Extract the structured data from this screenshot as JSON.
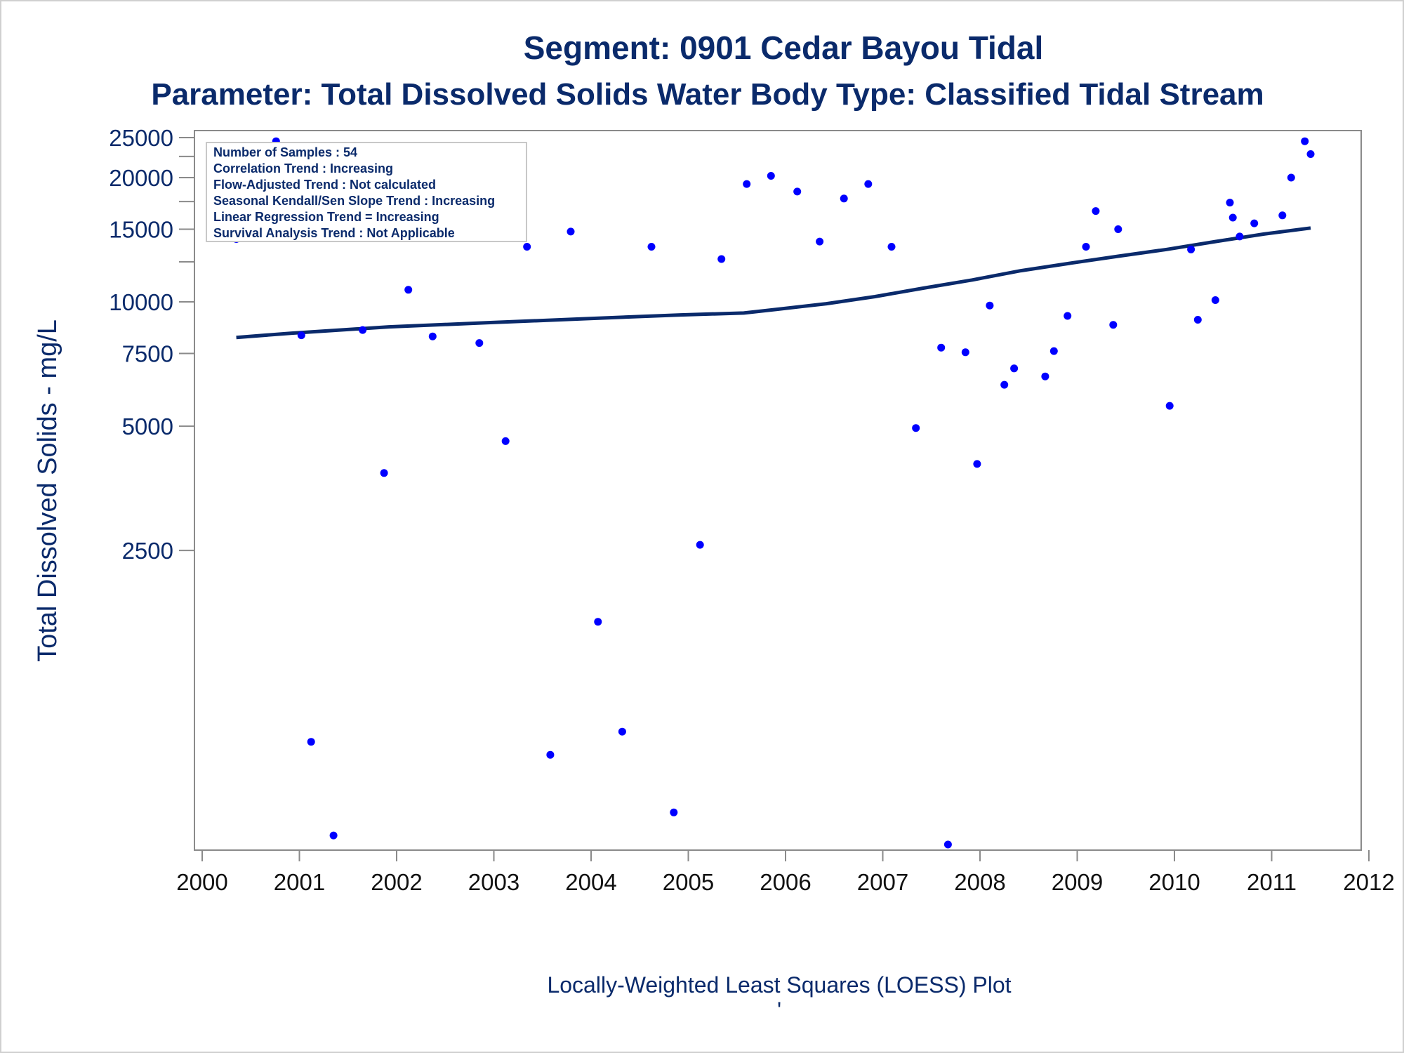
{
  "chart_data": {
    "type": "scatter",
    "title": "Segment: 0901  Cedar Bayou Tidal",
    "subtitle": "Parameter: Total Dissolved Solids   Water Body Type: Classified Tidal Stream",
    "xlabel": "Locally-Weighted Least Squares (LOESS) Plot",
    "footnote": "'",
    "ylabel": "Total Dissolved Solids - mg/L",
    "y_scale": "log",
    "xlim": [
      2000,
      2012
    ],
    "ylim": [
      470,
      26000
    ],
    "x_ticks": [
      2000,
      2001,
      2002,
      2003,
      2004,
      2005,
      2006,
      2007,
      2008,
      2009,
      2010,
      2011,
      2012
    ],
    "y_ticks": [
      {
        "value": 2500,
        "label": "2500"
      },
      {
        "value": 5000,
        "label": "5000"
      },
      {
        "value": 7500,
        "label": "7500"
      },
      {
        "value": 10000,
        "label": "10000"
      },
      {
        "value": 15000,
        "label": "15000"
      },
      {
        "value": 20000,
        "label": "20000"
      },
      {
        "value": 25000,
        "label": "25000"
      }
    ],
    "y_minor_ticks": [
      12500,
      17500,
      22500
    ],
    "legend_box": {
      "placement": "top-left",
      "lines": [
        "Number of Samples : 54",
        "Correlation Trend : Increasing",
        "Flow-Adjusted Trend : Not calculated",
        "Seasonal Kendall/Sen Slope Trend : Increasing",
        "Linear Regression Trend = Increasing",
        "Survival Analysis Trend : Not Applicable"
      ]
    },
    "series": [
      {
        "kind": "points",
        "color": "#0000ff",
        "points": [
          {
            "x": 2000.43,
            "y": 14200
          },
          {
            "x": 2000.84,
            "y": 24500
          },
          {
            "x": 2001.1,
            "y": 8300
          },
          {
            "x": 2001.2,
            "y": 860
          },
          {
            "x": 2001.43,
            "y": 510
          },
          {
            "x": 2001.73,
            "y": 8550
          },
          {
            "x": 2001.95,
            "y": 3850
          },
          {
            "x": 2002.2,
            "y": 10700
          },
          {
            "x": 2002.45,
            "y": 8250
          },
          {
            "x": 2002.93,
            "y": 7950
          },
          {
            "x": 2003.2,
            "y": 4600
          },
          {
            "x": 2003.42,
            "y": 13600
          },
          {
            "x": 2003.66,
            "y": 800
          },
          {
            "x": 2003.87,
            "y": 14800
          },
          {
            "x": 2004.15,
            "y": 1680
          },
          {
            "x": 2004.4,
            "y": 910
          },
          {
            "x": 2004.7,
            "y": 13600
          },
          {
            "x": 2004.93,
            "y": 580
          },
          {
            "x": 2005.2,
            "y": 2580
          },
          {
            "x": 2005.42,
            "y": 12700
          },
          {
            "x": 2005.68,
            "y": 19300
          },
          {
            "x": 2005.93,
            "y": 20200
          },
          {
            "x": 2006.2,
            "y": 18500
          },
          {
            "x": 2006.43,
            "y": 14000
          },
          {
            "x": 2006.68,
            "y": 17800
          },
          {
            "x": 2006.93,
            "y": 19300
          },
          {
            "x": 2007.17,
            "y": 13600
          },
          {
            "x": 2007.42,
            "y": 4950
          },
          {
            "x": 2007.68,
            "y": 7750
          },
          {
            "x": 2007.75,
            "y": 485
          },
          {
            "x": 2007.93,
            "y": 7550
          },
          {
            "x": 2008.05,
            "y": 4050
          },
          {
            "x": 2008.18,
            "y": 9800
          },
          {
            "x": 2008.33,
            "y": 6300
          },
          {
            "x": 2008.43,
            "y": 6900
          },
          {
            "x": 2008.75,
            "y": 6600
          },
          {
            "x": 2008.84,
            "y": 7600
          },
          {
            "x": 2008.98,
            "y": 9250
          },
          {
            "x": 2009.17,
            "y": 13600
          },
          {
            "x": 2009.27,
            "y": 16600
          },
          {
            "x": 2009.45,
            "y": 8800
          },
          {
            "x": 2009.5,
            "y": 15000
          },
          {
            "x": 2010.03,
            "y": 5600
          },
          {
            "x": 2010.25,
            "y": 13400
          },
          {
            "x": 2010.32,
            "y": 9050
          },
          {
            "x": 2010.5,
            "y": 10100
          },
          {
            "x": 2010.65,
            "y": 17400
          },
          {
            "x": 2010.68,
            "y": 16000
          },
          {
            "x": 2010.75,
            "y": 14400
          },
          {
            "x": 2010.9,
            "y": 15500
          },
          {
            "x": 2011.19,
            "y": 16200
          },
          {
            "x": 2011.28,
            "y": 20000
          },
          {
            "x": 2011.42,
            "y": 24500
          },
          {
            "x": 2011.48,
            "y": 22800
          }
        ]
      },
      {
        "kind": "loess-line",
        "color": "#0a2a6b",
        "points": [
          {
            "x": 2000.43,
            "y": 8200
          },
          {
            "x": 2001.0,
            "y": 8400
          },
          {
            "x": 2002.0,
            "y": 8700
          },
          {
            "x": 2003.0,
            "y": 8900
          },
          {
            "x": 2004.0,
            "y": 9100
          },
          {
            "x": 2005.0,
            "y": 9300
          },
          {
            "x": 2005.65,
            "y": 9400
          },
          {
            "x": 2006.0,
            "y": 9600
          },
          {
            "x": 2006.5,
            "y": 9900
          },
          {
            "x": 2007.0,
            "y": 10300
          },
          {
            "x": 2007.5,
            "y": 10800
          },
          {
            "x": 2008.0,
            "y": 11300
          },
          {
            "x": 2008.5,
            "y": 11900
          },
          {
            "x": 2009.0,
            "y": 12400
          },
          {
            "x": 2009.5,
            "y": 12900
          },
          {
            "x": 2010.0,
            "y": 13400
          },
          {
            "x": 2010.5,
            "y": 14000
          },
          {
            "x": 2011.0,
            "y": 14600
          },
          {
            "x": 2011.48,
            "y": 15100
          }
        ]
      }
    ]
  }
}
